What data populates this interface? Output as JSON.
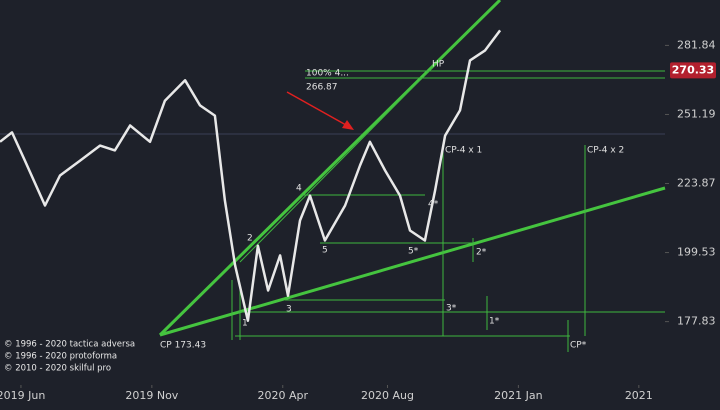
{
  "chart_data": {
    "type": "line",
    "yscale": "log",
    "x": [
      -0.8,
      -0.34,
      0.15,
      0.92,
      1.49,
      2.26,
      3.02,
      3.59,
      4.17,
      4.93,
      5.5,
      6.27,
      6.84,
      7.41,
      7.79,
      8.18,
      8.67,
      9.05,
      9.44,
      9.9,
      10.2,
      10.66,
      11.04,
      11.61,
      12.38,
      12.95,
      13.33,
      13.91,
      14.48,
      14.86,
      15.43,
      15.82,
      16.2,
      16.77,
      17.15,
      17.73,
      18.3
    ],
    "series": [
      {
        "color": "#e8e8e8",
        "values": [
          240.0,
          243.8,
          232.6,
          215.8,
          226.9,
          232.6,
          238.5,
          236.6,
          246.6,
          240.0,
          257.0,
          265.9,
          255.0,
          250.7,
          217.6,
          195.3,
          178.1,
          201.8,
          187.3,
          198.6,
          185.7,
          210.5,
          219.4,
          203.6,
          215.8,
          230.7,
          240.0,
          228.8,
          219.4,
          207.0,
          203.6,
          221.3,
          242.5,
          252.9,
          274.9,
          279.5,
          289.0
        ]
      }
    ],
    "xlim": [
      -0.8,
      24.6
    ],
    "xticks": [
      {
        "value": 0,
        "label": "2019 Jun"
      },
      {
        "value": 5,
        "label": "2019 Nov"
      },
      {
        "value": 10,
        "label": "2020 Apr"
      },
      {
        "value": 14,
        "label": "2020 Aug"
      },
      {
        "value": 19,
        "label": "2021 Jan"
      },
      {
        "value": 23.6,
        "label": "2021"
      }
    ],
    "ylim": [
      160,
      304
    ],
    "yticks": [
      177.83,
      199.53,
      223.87,
      251.19,
      281.84
    ],
    "last_price": 270.33,
    "last_price_color": "#b3202e",
    "annotations": [
      "100%  4...",
      "266.87",
      "HP",
      "CP-4 x 1",
      "CP-4 x 2",
      "4",
      "2",
      "5",
      "3",
      "1",
      "4*",
      "5*",
      "2*",
      "3*",
      "1*",
      "CP*",
      "CP 173.43",
      "© 1996 - 2020 tactica adversa",
      "© 1996 - 2020 protoforma",
      "© 2010 - 2020 skilful pro"
    ]
  }
}
